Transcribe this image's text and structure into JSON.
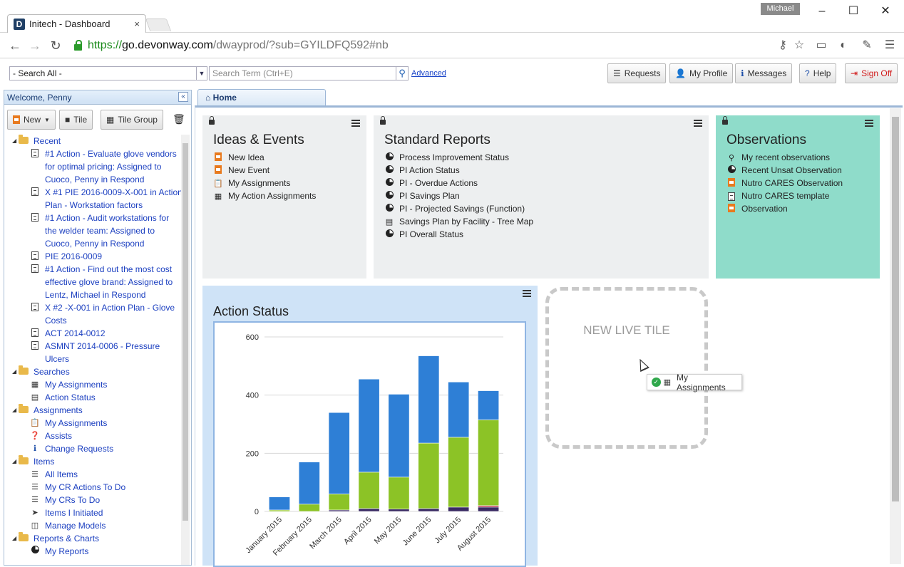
{
  "browser": {
    "tab_title": "Initech - Dashboard",
    "favicon_letter": "D",
    "tab_close": "×",
    "user": "Michael",
    "url_scheme": "https://",
    "url_host": "go.devonway.com",
    "url_path": "/dwayprod/?sub=GYILDFQ592#nb",
    "icons": [
      "back-icon",
      "forward-icon",
      "reload-icon",
      "lock-icon",
      "key-icon",
      "star-icon",
      "cast-icon",
      "extension-icon",
      "eyedropper-icon",
      "menu-icon"
    ]
  },
  "toolbar": {
    "search_scope": "- Search All -",
    "search_placeholder": "Search Term (Ctrl+E)",
    "advanced": "Advanced",
    "requests": "Requests",
    "my_profile": "My Profile",
    "messages": "Messages",
    "help": "Help",
    "sign_off": "Sign Off",
    "sign_off_color": "#d01818"
  },
  "sidebar": {
    "welcome": "Welcome, Penny",
    "new_label": "New",
    "tile_label": "Tile",
    "tile_group_label": "Tile Group",
    "tree": [
      {
        "type": "folder",
        "label": "Recent"
      },
      {
        "type": "doc",
        "label": "#1 Action - Evaluate glove vendors"
      },
      {
        "type": "cont",
        "label": "for optimal pricing: Assigned to"
      },
      {
        "type": "cont",
        "label": "Cuoco, Penny in Respond"
      },
      {
        "type": "doc",
        "label": "X #1 PIE 2016-0009-X-001 in Action"
      },
      {
        "type": "cont",
        "label": "Plan - Workstation factors"
      },
      {
        "type": "doc",
        "label": "#1 Action - Audit workstations for"
      },
      {
        "type": "cont",
        "label": "the welder team: Assigned to"
      },
      {
        "type": "cont",
        "label": "Cuoco, Penny in Respond"
      },
      {
        "type": "doc",
        "label": "PIE 2016-0009"
      },
      {
        "type": "doc",
        "label": "#1 Action - Find out the most cost"
      },
      {
        "type": "cont",
        "label": "effective glove brand: Assigned to"
      },
      {
        "type": "cont",
        "label": "Lentz, Michael in Respond"
      },
      {
        "type": "doc",
        "label": "X #2 -X-001 in Action Plan - Glove"
      },
      {
        "type": "cont",
        "label": "Costs"
      },
      {
        "type": "doc",
        "label": "ACT 2014-0012"
      },
      {
        "type": "doc",
        "label": "ASMNT 2014-0006 - Pressure"
      },
      {
        "type": "cont",
        "label": "Ulcers"
      },
      {
        "type": "folder",
        "label": "Searches"
      },
      {
        "type": "grid",
        "label": "My Assignments",
        "selected": true
      },
      {
        "type": "chart",
        "label": "Action Status"
      },
      {
        "type": "folder",
        "label": "Assignments"
      },
      {
        "type": "clip",
        "label": "My Assignments"
      },
      {
        "type": "help",
        "label": "Assists"
      },
      {
        "type": "info",
        "label": "Change Requests"
      },
      {
        "type": "folder",
        "label": "Items"
      },
      {
        "type": "list",
        "label": "All Items"
      },
      {
        "type": "list",
        "label": "My CR Actions To Do"
      },
      {
        "type": "list",
        "label": "My CRs To Do"
      },
      {
        "type": "arrow",
        "label": "Items I Initiated"
      },
      {
        "type": "model",
        "label": "Manage Models"
      },
      {
        "type": "folder",
        "label": "Reports & Charts"
      },
      {
        "type": "pie",
        "label": "My Reports"
      }
    ]
  },
  "main": {
    "home_tab": "Home",
    "tiles": {
      "ideas": {
        "title": "Ideas & Events",
        "items": [
          {
            "icon": "new-idea-icon",
            "label": "New Idea"
          },
          {
            "icon": "new-event-icon",
            "label": "New Event"
          },
          {
            "icon": "clipboard-icon",
            "label": "My Assignments"
          },
          {
            "icon": "grid-icon",
            "label": "My Action Assignments"
          }
        ]
      },
      "reports": {
        "title": "Standard Reports",
        "items": [
          {
            "icon": "pie-icon",
            "label": "Process Improvement Status"
          },
          {
            "icon": "pie-icon",
            "label": "PI Action Status"
          },
          {
            "icon": "pie-icon",
            "label": "PI - Overdue Actions"
          },
          {
            "icon": "pie-icon",
            "label": "PI Savings Plan"
          },
          {
            "icon": "pie-icon",
            "label": "PI - Projected Savings (Function)"
          },
          {
            "icon": "treemap-icon",
            "label": "Savings Plan by Facility - Tree Map"
          },
          {
            "icon": "pie-icon",
            "label": "PI Overall Status"
          }
        ]
      },
      "observations": {
        "title": "Observations",
        "color": "#8fdcca",
        "items": [
          {
            "icon": "search-icon",
            "label": "My recent observations"
          },
          {
            "icon": "pie-icon",
            "label": "Recent Unsat Observation"
          },
          {
            "icon": "form-icon",
            "label": "Nutro CARES Observation"
          },
          {
            "icon": "doc-icon",
            "label": "Nutro CARES template"
          },
          {
            "icon": "form-icon",
            "label": "Observation"
          }
        ]
      }
    },
    "chart_tile_title": "Action Status",
    "new_live_tile": "NEW LIVE TILE",
    "drag_label": "My Assignments"
  },
  "chart_data": {
    "type": "bar",
    "stacked": true,
    "categories": [
      "January 2015",
      "February 2015",
      "March 2015",
      "April 2015",
      "May 2015",
      "June 2015",
      "July 2015",
      "August 2015"
    ],
    "series": [
      {
        "color": "#3a2a63",
        "values": [
          0,
          0,
          5,
          10,
          8,
          10,
          15,
          15
        ]
      },
      {
        "color": "#b02040",
        "values": [
          0,
          0,
          0,
          0,
          0,
          0,
          0,
          5
        ]
      },
      {
        "color": "#8cc326",
        "values": [
          5,
          25,
          55,
          125,
          110,
          225,
          240,
          295
        ]
      },
      {
        "color": "#2e7fd6",
        "values": [
          45,
          145,
          280,
          320,
          285,
          300,
          190,
          100
        ]
      }
    ],
    "yticks": [
      "600",
      "400",
      "200",
      "0"
    ],
    "ylim": [
      0,
      600
    ],
    "grid": true
  }
}
